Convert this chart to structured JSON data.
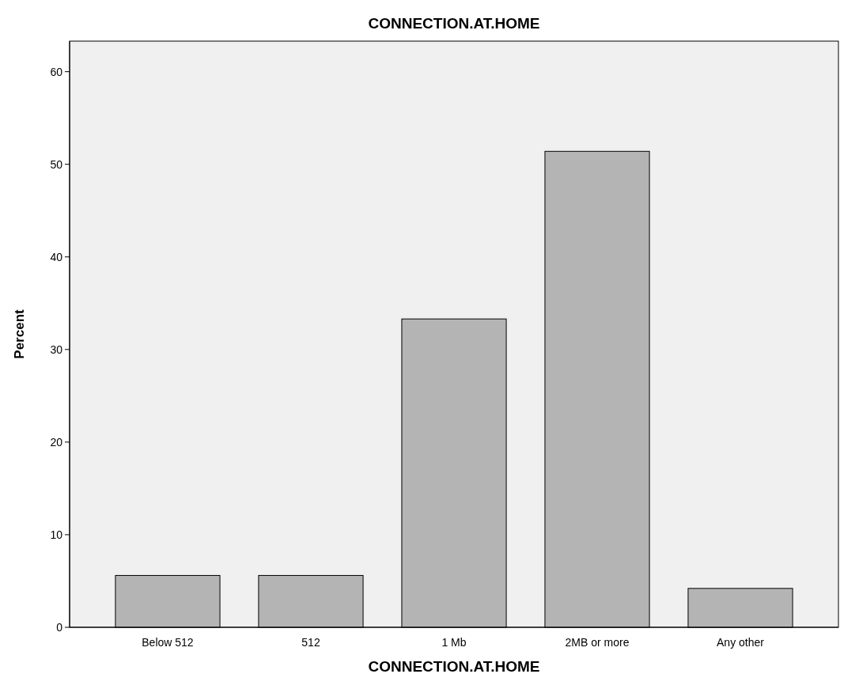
{
  "chart_data": {
    "type": "bar",
    "title": "CONNECTION.AT.HOME",
    "xlabel": "CONNECTION.AT.HOME",
    "ylabel": "Percent",
    "categories": [
      "Below 512",
      "512",
      "1 Mb",
      "2MB or more",
      "Any other"
    ],
    "values": [
      5.6,
      5.6,
      33.3,
      51.4,
      4.2
    ],
    "color": "#b4b4b4",
    "ylim": [
      0,
      63.3
    ],
    "yticks": [
      0,
      10,
      20,
      30,
      40,
      50,
      60
    ],
    "grid": false
  }
}
